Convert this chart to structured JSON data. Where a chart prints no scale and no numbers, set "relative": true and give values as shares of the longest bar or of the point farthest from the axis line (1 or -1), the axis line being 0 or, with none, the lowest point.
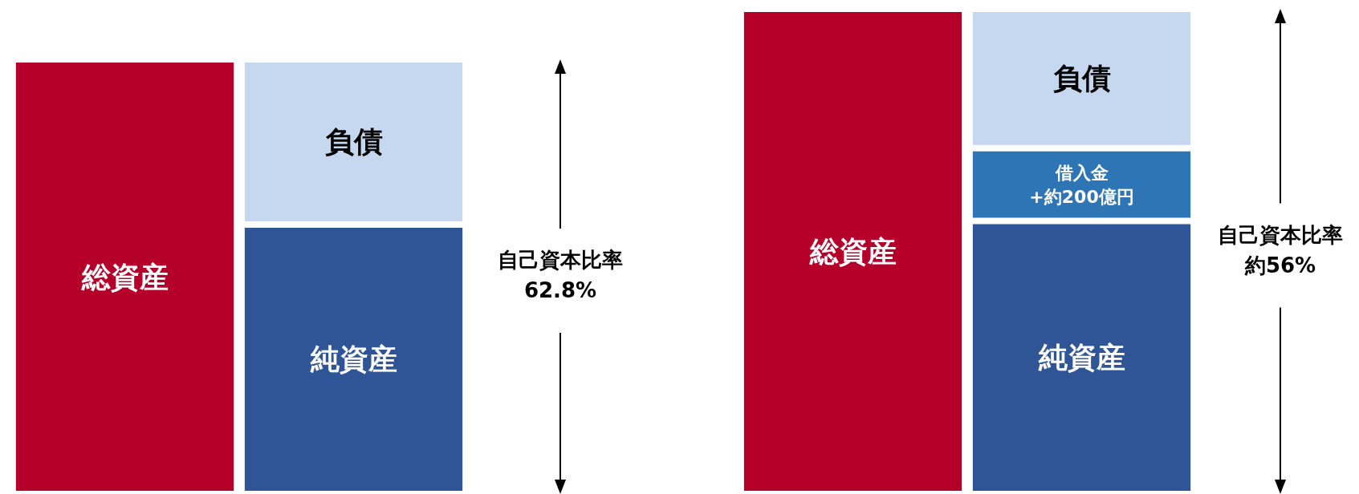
{
  "chart_data": [
    {
      "type": "bar",
      "stacked": true,
      "relative": true,
      "grid": false,
      "legend": false,
      "categories": [
        null,
        null
      ],
      "annotations": [
        "自己資本比率",
        "62.8%"
      ],
      "series": [
        {
          "name": "総資産",
          "color": "#b5002a",
          "values": [
            1,
            null
          ]
        },
        {
          "name": "純資産",
          "color": "#2f5597",
          "values": [
            null,
            0.62
          ]
        },
        {
          "name": "負債",
          "color": "#c5d8ef",
          "values": [
            null,
            0.38
          ]
        }
      ]
    },
    {
      "type": "bar",
      "stacked": true,
      "relative": true,
      "grid": false,
      "legend": false,
      "categories": [
        null,
        null
      ],
      "annotations": [
        "自己資本比率",
        "約56%"
      ],
      "series": [
        {
          "name": "総資産",
          "color": "#b5002a",
          "values": [
            1,
            null
          ]
        },
        {
          "name": "純資産",
          "color": "#2f5597",
          "values": [
            null,
            0.563
          ]
        },
        {
          "name": "借入金\n+約200億円",
          "color": "#2e75b6",
          "values": [
            null,
            0.15
          ]
        },
        {
          "name": "負債",
          "color": "#c5d8ef",
          "values": [
            null,
            0.287
          ]
        }
      ]
    }
  ]
}
